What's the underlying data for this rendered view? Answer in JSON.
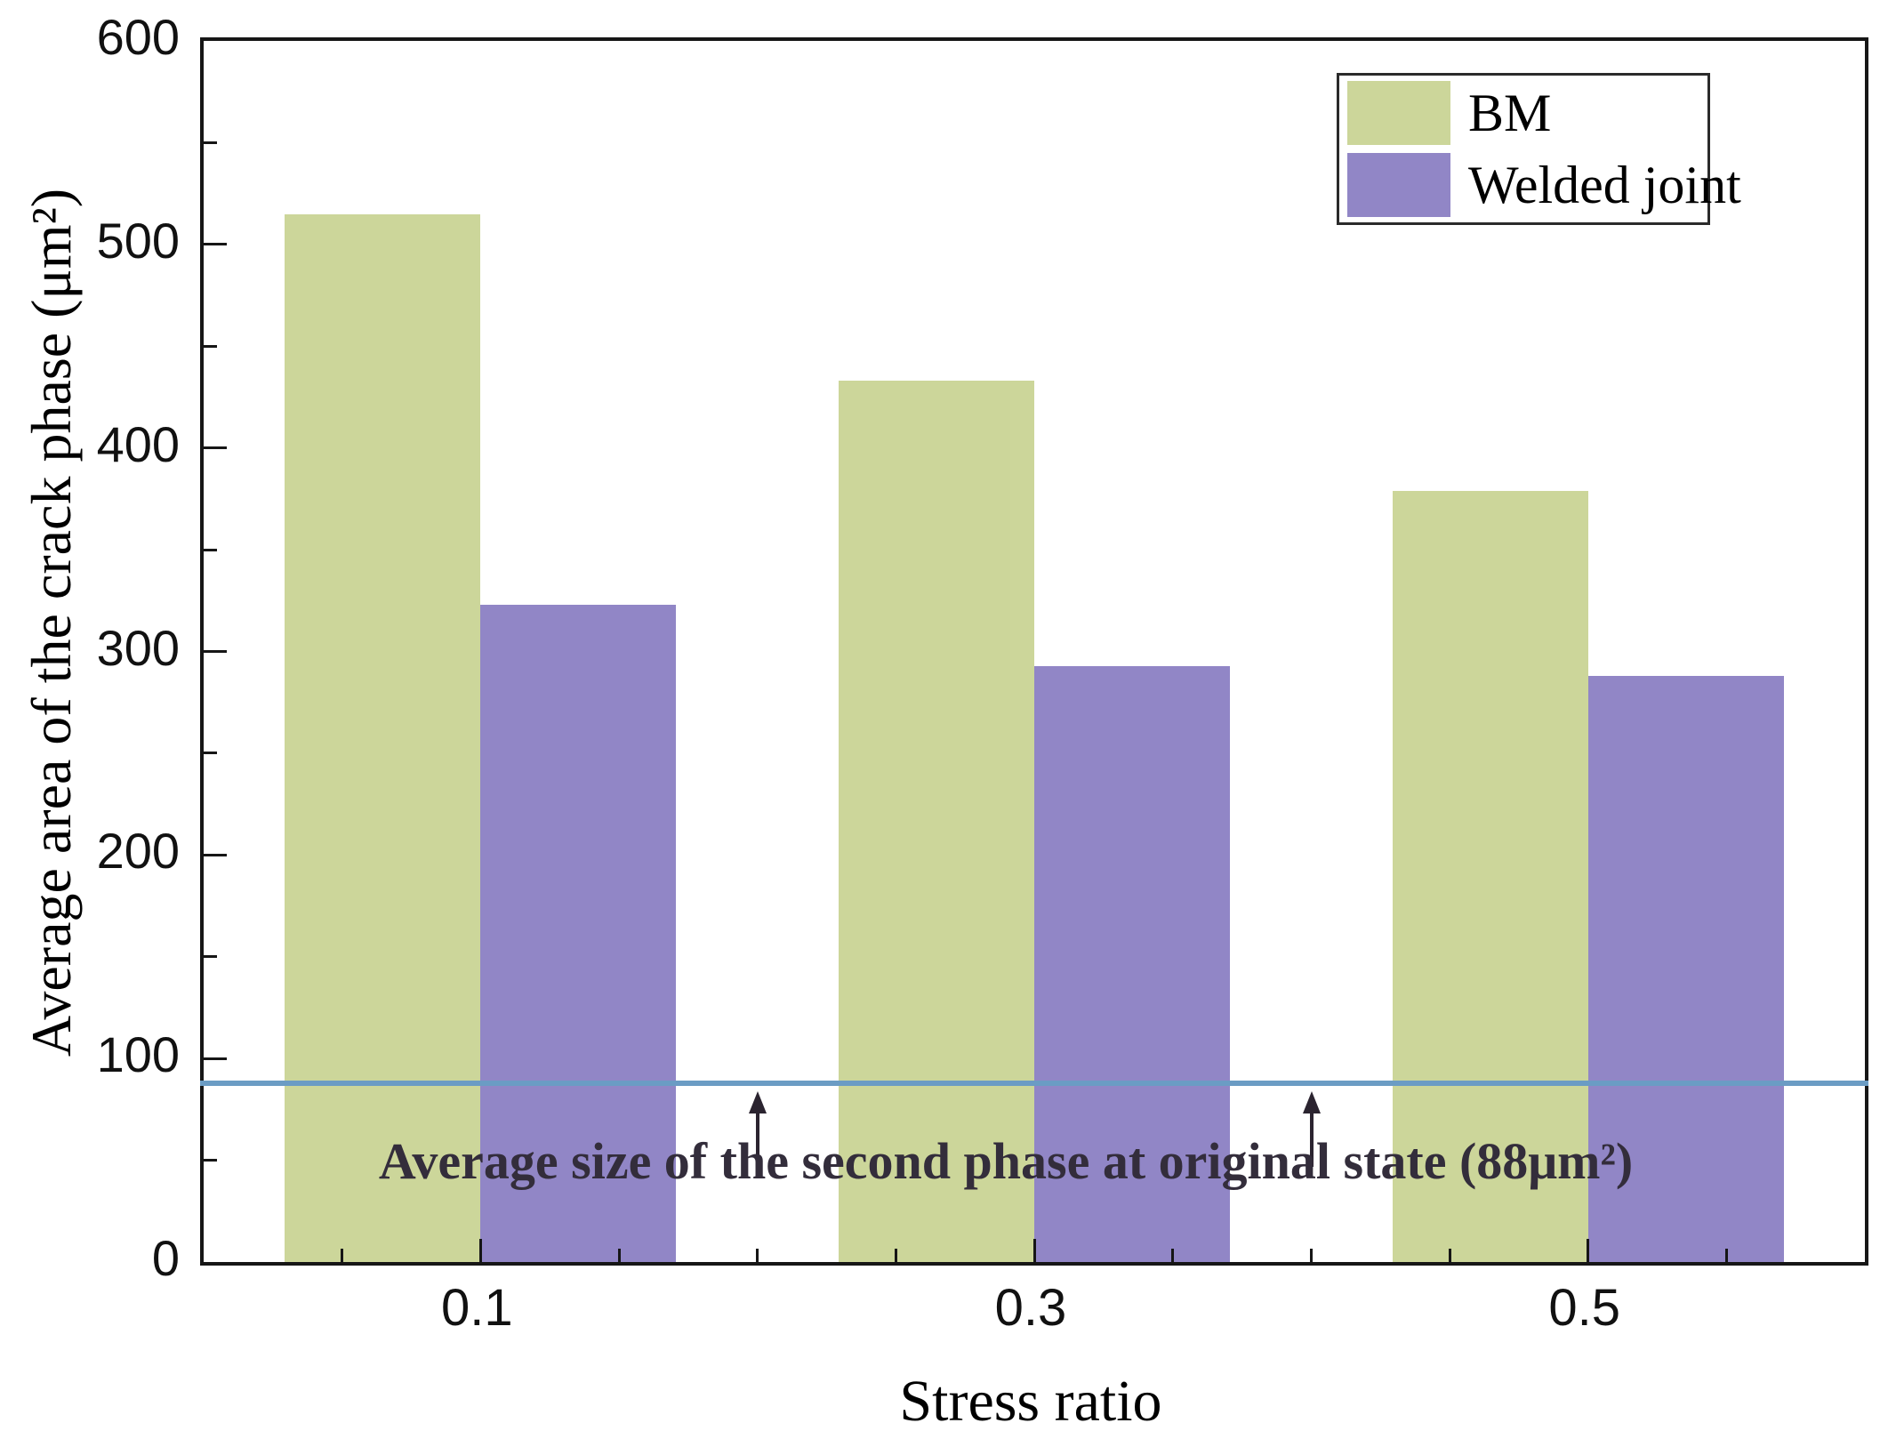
{
  "chart_data": {
    "type": "bar",
    "categories": [
      "0.1",
      "0.3",
      "0.5"
    ],
    "series": [
      {
        "name": "BM",
        "color": "#ccd69a",
        "values": [
          515,
          433,
          379
        ]
      },
      {
        "name": "Welded joint",
        "color": "#9186c6",
        "values": [
          323,
          293,
          288
        ]
      }
    ],
    "title": "",
    "xlabel": "Stress ratio",
    "ylabel": "Average area of the crack phase (μm²)",
    "ylim": [
      0,
      600
    ],
    "yticks": [
      0,
      100,
      200,
      300,
      400,
      500,
      600
    ],
    "ytick_minor_step": 50,
    "grid": false,
    "legend_position": "top-right",
    "reference_line": {
      "value": 88,
      "color": "#6b9cc4",
      "label": "Average size of the second phase at original state (88μm²)"
    }
  },
  "legend": {
    "items": [
      {
        "label": "BM"
      },
      {
        "label": "Welded joint"
      }
    ]
  }
}
